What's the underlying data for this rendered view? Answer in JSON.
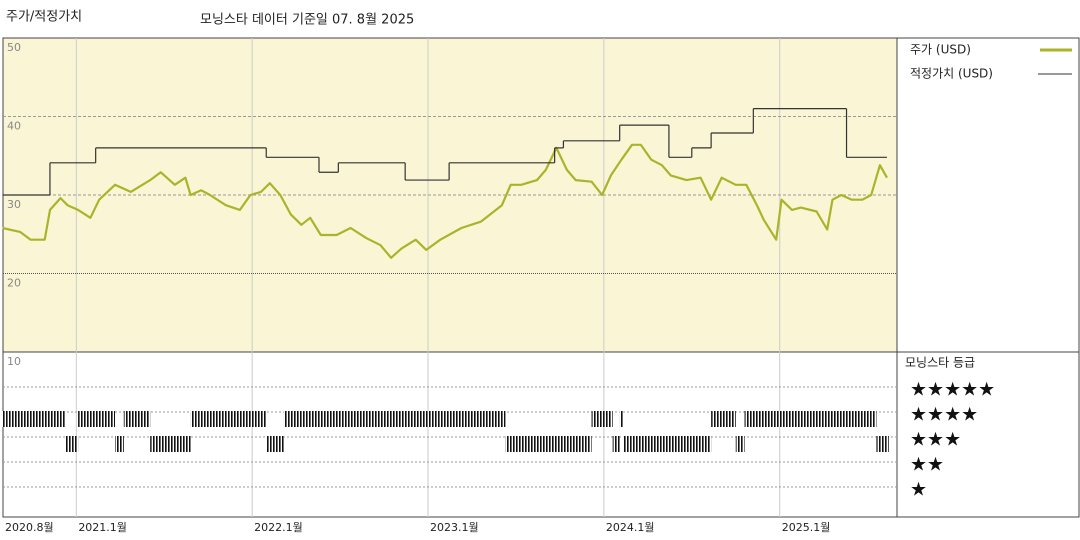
{
  "chart_data": {
    "type": "line",
    "title": "주가/적정가치",
    "subtitle": "모닝스타 데이터 기준일 07. 8월 2025",
    "xlim": [
      2020.583,
      2025.667
    ],
    "xticks": [
      {
        "value": 2020.583,
        "label": "2020.8월"
      },
      {
        "value": 2021.0,
        "label": "2021.1월"
      },
      {
        "value": 2022.0,
        "label": "2022.1월"
      },
      {
        "value": 2023.0,
        "label": "2023.1월"
      },
      {
        "value": 2024.0,
        "label": "2024.1월"
      },
      {
        "value": 2025.0,
        "label": "2025.1월"
      }
    ],
    "ylim": [
      10,
      50
    ],
    "yticks": [
      10,
      20,
      30,
      40,
      50
    ],
    "series": [
      {
        "name": "주가 (USD)",
        "color": "#aab42a",
        "x": [
          2020.58,
          2020.68,
          2020.74,
          2020.82,
          2020.85,
          2020.91,
          2020.95,
          2021.01,
          2021.08,
          2021.13,
          2021.22,
          2021.31,
          2021.42,
          2021.48,
          2021.56,
          2021.62,
          2021.65,
          2021.71,
          2021.76,
          2021.85,
          2021.93,
          2021.99,
          2022.05,
          2022.1,
          2022.16,
          2022.22,
          2022.28,
          2022.33,
          2022.39,
          2022.48,
          2022.56,
          2022.65,
          2022.73,
          2022.79,
          2022.85,
          2022.93,
          2022.99,
          2023.07,
          2023.19,
          2023.3,
          2023.42,
          2023.47,
          2023.53,
          2023.62,
          2023.67,
          2023.73,
          2023.79,
          2023.84,
          2023.93,
          2023.99,
          2024.04,
          2024.1,
          2024.16,
          2024.21,
          2024.27,
          2024.33,
          2024.38,
          2024.47,
          2024.55,
          2024.61,
          2024.67,
          2024.75,
          2024.81,
          2024.87,
          2024.91,
          2024.98,
          2025.01,
          2025.07,
          2025.12,
          2025.21,
          2025.27,
          2025.3,
          2025.35,
          2025.41,
          2025.47,
          2025.52,
          2025.57,
          2025.61
        ],
        "values": [
          25.8,
          25.3,
          24.3,
          24.3,
          28.1,
          29.6,
          28.7,
          28.1,
          27.1,
          29.4,
          31.3,
          30.4,
          31.9,
          32.9,
          31.3,
          32.2,
          30.0,
          30.6,
          30.0,
          28.7,
          28.1,
          30.0,
          30.4,
          31.5,
          30.0,
          27.5,
          26.2,
          27.1,
          24.9,
          24.9,
          25.8,
          24.5,
          23.6,
          22.0,
          23.2,
          24.3,
          23.0,
          24.3,
          25.8,
          26.6,
          28.7,
          31.3,
          31.3,
          31.9,
          33.2,
          36.0,
          33.2,
          31.9,
          31.7,
          30.0,
          32.5,
          34.5,
          36.4,
          36.4,
          34.5,
          33.8,
          32.5,
          31.9,
          32.2,
          29.4,
          32.2,
          31.3,
          31.3,
          28.7,
          26.8,
          24.3,
          29.4,
          28.1,
          28.4,
          27.9,
          25.6,
          29.4,
          30.0,
          29.4,
          29.4,
          30.0,
          33.8,
          32.2
        ]
      },
      {
        "name": "적정가치 (USD)",
        "color": "#333333",
        "step": true,
        "x": [
          2020.58,
          2020.85,
          2021.11,
          2022.08,
          2022.38,
          2022.49,
          2022.87,
          2023.12,
          2023.72,
          2023.77,
          2024.09,
          2024.37,
          2024.5,
          2024.61,
          2024.85,
          2025.38,
          2025.61
        ],
        "values": [
          30.0,
          34.1,
          36.0,
          34.8,
          32.9,
          34.1,
          31.9,
          34.1,
          36.0,
          36.9,
          38.9,
          34.8,
          36.0,
          37.9,
          41.0,
          34.8,
          34.8
        ]
      }
    ],
    "rating_title": "모닝스타 등급",
    "rating_labels": [
      "★★★★★",
      "★★★★",
      "★★★",
      "★★",
      "★"
    ],
    "ratings": {
      "bounds": [
        2020.58,
        2020.94,
        2021.01,
        2021.22,
        2021.27,
        2021.42,
        2021.65,
        2022.08,
        2022.18,
        2023.44,
        2023.93,
        2024.05,
        2024.09,
        2024.11,
        2024.61,
        2024.75,
        2024.8,
        2025.55,
        2025.62
      ],
      "stars": [
        4,
        3,
        4,
        3,
        4,
        3,
        4,
        3,
        4,
        3,
        4,
        3,
        4,
        3,
        4,
        3,
        4,
        3
      ]
    }
  }
}
